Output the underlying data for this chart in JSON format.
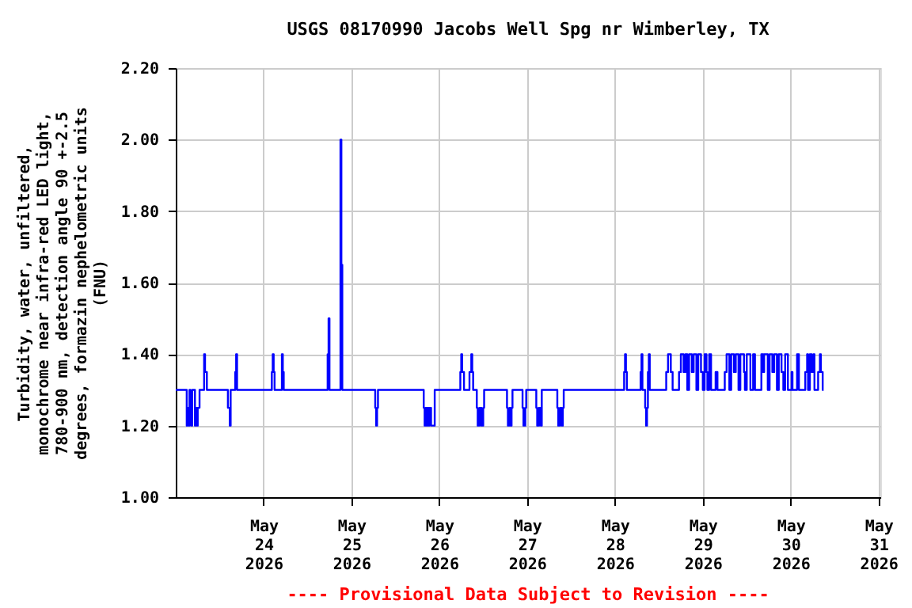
{
  "chart_data": {
    "type": "step",
    "title": "USGS 08170990 Jacobs Well Spg nr Wimberley, TX",
    "ylabel": "Turbidity, water, unfiltered, monochrome near infra-red LED light, 780-900 nm, detection angle 90 +-2.5 degrees, formazin nephelometric units (FNU)",
    "annotations": [
      "---- Provisional Data Subject to Revision ----"
    ],
    "xlim": [
      "2026-05-23T00:00",
      "2026-05-31T00:30"
    ],
    "xticks": [
      {
        "value": "2026-05-24T00:00",
        "label": "May\n24\n2026"
      },
      {
        "value": "2026-05-25T00:00",
        "label": "May\n25\n2026"
      },
      {
        "value": "2026-05-26T00:00",
        "label": "May\n26\n2026"
      },
      {
        "value": "2026-05-27T00:00",
        "label": "May\n27\n2026"
      },
      {
        "value": "2026-05-28T00:00",
        "label": "May\n28\n2026"
      },
      {
        "value": "2026-05-29T00:00",
        "label": "May\n29\n2026"
      },
      {
        "value": "2026-05-30T00:00",
        "label": "May\n30\n2026"
      },
      {
        "value": "2026-05-31T00:00",
        "label": "May\n31\n2026"
      }
    ],
    "ylim": [
      1.0,
      2.2
    ],
    "yticks": [
      {
        "value": 1.0,
        "label": "1.00"
      },
      {
        "value": 1.2,
        "label": "1.20"
      },
      {
        "value": 1.4,
        "label": "1.40"
      },
      {
        "value": 1.6,
        "label": "1.60"
      },
      {
        "value": 1.8,
        "label": "1.80"
      },
      {
        "value": 2.0,
        "label": "2.00"
      },
      {
        "value": 2.2,
        "label": "2.20"
      }
    ],
    "grid": true,
    "marker": "none",
    "line_style": "solid",
    "series": [
      {
        "color": "#0000ff",
        "x": [
          "2026-05-23T00:00",
          "2026-05-23T03:00",
          "2026-05-23T03:15",
          "2026-05-23T03:30",
          "2026-05-23T03:45",
          "2026-05-23T04:00",
          "2026-05-23T04:15",
          "2026-05-23T04:30",
          "2026-05-23T05:15",
          "2026-05-23T05:30",
          "2026-05-23T05:45",
          "2026-05-23T06:00",
          "2026-05-23T06:30",
          "2026-05-23T07:45",
          "2026-05-23T08:00",
          "2026-05-23T08:30",
          "2026-05-23T14:15",
          "2026-05-23T14:45",
          "2026-05-23T15:00",
          "2026-05-23T16:15",
          "2026-05-23T16:30",
          "2026-05-23T16:45",
          "2026-05-24T02:15",
          "2026-05-24T02:30",
          "2026-05-24T02:45",
          "2026-05-24T03:00",
          "2026-05-24T05:00",
          "2026-05-24T05:15",
          "2026-05-24T05:30",
          "2026-05-24T17:30",
          "2026-05-24T17:45",
          "2026-05-24T18:00",
          "2026-05-24T21:00",
          "2026-05-24T21:15",
          "2026-05-24T21:30",
          "2026-05-25T06:30",
          "2026-05-25T06:45",
          "2026-05-25T07:00",
          "2026-05-25T07:15",
          "2026-05-25T19:45",
          "2026-05-25T20:00",
          "2026-05-25T20:15",
          "2026-05-25T20:30",
          "2026-05-25T20:45",
          "2026-05-25T21:00",
          "2026-05-25T21:15",
          "2026-05-25T21:45",
          "2026-05-25T22:45",
          "2026-05-26T05:45",
          "2026-05-26T06:00",
          "2026-05-26T06:15",
          "2026-05-26T06:45",
          "2026-05-26T08:15",
          "2026-05-26T08:45",
          "2026-05-26T09:00",
          "2026-05-26T09:15",
          "2026-05-26T10:15",
          "2026-05-26T10:30",
          "2026-05-26T11:00",
          "2026-05-26T11:30",
          "2026-05-26T12:00",
          "2026-05-26T12:15",
          "2026-05-26T18:30",
          "2026-05-26T18:45",
          "2026-05-26T19:15",
          "2026-05-26T19:30",
          "2026-05-26T19:45",
          "2026-05-26T20:00",
          "2026-05-26T22:45",
          "2026-05-26T23:00",
          "2026-05-26T23:30",
          "2026-05-26T23:45",
          "2026-05-27T02:30",
          "2026-05-27T02:45",
          "2026-05-27T03:15",
          "2026-05-27T03:45",
          "2026-05-27T04:00",
          "2026-05-27T08:15",
          "2026-05-27T08:30",
          "2026-05-27T09:00",
          "2026-05-27T09:30",
          "2026-05-27T09:45",
          "2026-05-27T10:00",
          "2026-05-28T02:30",
          "2026-05-28T02:45",
          "2026-05-28T03:00",
          "2026-05-28T03:15",
          "2026-05-28T07:00",
          "2026-05-28T07:15",
          "2026-05-28T07:30",
          "2026-05-28T08:15",
          "2026-05-28T08:30",
          "2026-05-28T08:45",
          "2026-05-28T09:00",
          "2026-05-28T09:15",
          "2026-05-28T09:30",
          "2026-05-28T14:00",
          "2026-05-28T14:30",
          "2026-05-28T15:15",
          "2026-05-28T15:45",
          "2026-05-28T17:30",
          "2026-05-28T18:00",
          "2026-05-28T18:45",
          "2026-05-28T19:15",
          "2026-05-28T19:45",
          "2026-05-28T20:15",
          "2026-05-28T21:00",
          "2026-05-28T21:30",
          "2026-05-28T22:15",
          "2026-05-28T22:45",
          "2026-05-28T23:30",
          "2026-05-29T00:00",
          "2026-05-29T00:30",
          "2026-05-29T01:00",
          "2026-05-29T01:15",
          "2026-05-29T01:45",
          "2026-05-29T02:15",
          "2026-05-29T03:30",
          "2026-05-29T04:00",
          "2026-05-29T06:00",
          "2026-05-29T06:30",
          "2026-05-29T07:15",
          "2026-05-29T07:45",
          "2026-05-29T08:30",
          "2026-05-29T09:00",
          "2026-05-29T09:45",
          "2026-05-29T10:15",
          "2026-05-29T11:15",
          "2026-05-29T11:30",
          "2026-05-29T12:00",
          "2026-05-29T13:00",
          "2026-05-29T13:45",
          "2026-05-29T14:15",
          "2026-05-29T16:00",
          "2026-05-29T16:30",
          "2026-05-29T16:45",
          "2026-05-29T17:45",
          "2026-05-29T18:15",
          "2026-05-29T19:00",
          "2026-05-29T19:30",
          "2026-05-29T20:15",
          "2026-05-29T20:45",
          "2026-05-29T21:30",
          "2026-05-29T22:00",
          "2026-05-29T22:30",
          "2026-05-29T23:15",
          "2026-05-30T00:15",
          "2026-05-30T00:30",
          "2026-05-30T01:45",
          "2026-05-30T02:15",
          "2026-05-30T04:00",
          "2026-05-30T04:30",
          "2026-05-30T04:45",
          "2026-05-30T05:15",
          "2026-05-30T05:45",
          "2026-05-30T06:15",
          "2026-05-30T06:30",
          "2026-05-30T07:30",
          "2026-05-30T08:00",
          "2026-05-30T08:15",
          "2026-05-30T08:45",
          "2026-05-30T09:00"
        ],
        "values": [
          1.3,
          1.2,
          1.25,
          1.2,
          1.3,
          1.25,
          1.2,
          1.3,
          1.2,
          1.25,
          1.2,
          1.25,
          1.3,
          1.4,
          1.35,
          1.3,
          1.25,
          1.2,
          1.3,
          1.35,
          1.4,
          1.3,
          1.35,
          1.4,
          1.35,
          1.3,
          1.4,
          1.35,
          1.3,
          1.4,
          1.5,
          1.3,
          2.0,
          1.65,
          1.3,
          1.25,
          1.2,
          1.25,
          1.3,
          1.25,
          1.2,
          1.25,
          1.2,
          1.25,
          1.2,
          1.25,
          1.2,
          1.3,
          1.35,
          1.4,
          1.35,
          1.3,
          1.35,
          1.4,
          1.35,
          1.3,
          1.25,
          1.2,
          1.25,
          1.2,
          1.25,
          1.3,
          1.25,
          1.2,
          1.25,
          1.2,
          1.25,
          1.3,
          1.25,
          1.2,
          1.25,
          1.3,
          1.25,
          1.2,
          1.25,
          1.2,
          1.3,
          1.25,
          1.2,
          1.25,
          1.2,
          1.25,
          1.3,
          1.35,
          1.4,
          1.35,
          1.3,
          1.35,
          1.4,
          1.3,
          1.25,
          1.2,
          1.25,
          1.35,
          1.4,
          1.3,
          1.35,
          1.4,
          1.35,
          1.3,
          1.35,
          1.4,
          1.35,
          1.4,
          1.3,
          1.4,
          1.35,
          1.4,
          1.3,
          1.4,
          1.35,
          1.3,
          1.4,
          1.35,
          1.3,
          1.4,
          1.3,
          1.35,
          1.3,
          1.35,
          1.4,
          1.3,
          1.4,
          1.35,
          1.4,
          1.3,
          1.4,
          1.35,
          1.3,
          1.4,
          1.3,
          1.4,
          1.3,
          1.4,
          1.35,
          1.4,
          1.3,
          1.4,
          1.35,
          1.4,
          1.3,
          1.4,
          1.35,
          1.3,
          1.4,
          1.3,
          1.35,
          1.3,
          1.4,
          1.3,
          1.35,
          1.4,
          1.3,
          1.4,
          1.35,
          1.4,
          1.3,
          1.35,
          1.4,
          1.35,
          1.3,
          1.3
        ]
      }
    ]
  }
}
